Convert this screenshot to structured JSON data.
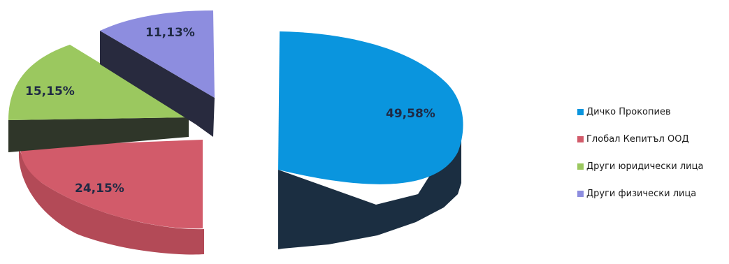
{
  "chart_data": {
    "type": "pie",
    "style": "3d-exploded",
    "legend_position": "right",
    "slices": [
      {
        "label": "Дичко Прокопиев",
        "value": 49.58,
        "display": "49,58%",
        "color": "#0a95de"
      },
      {
        "label": "Глобал Кепитъл ООД",
        "value": 24.15,
        "display": "24,15%",
        "color": "#d25b6a"
      },
      {
        "label": "Други юридически лица",
        "value": 15.15,
        "display": "15,15%",
        "color": "#9bc85f"
      },
      {
        "label": "Други физически лица",
        "value": 11.13,
        "display": "11,13%",
        "color": "#8d8ddf"
      }
    ]
  }
}
